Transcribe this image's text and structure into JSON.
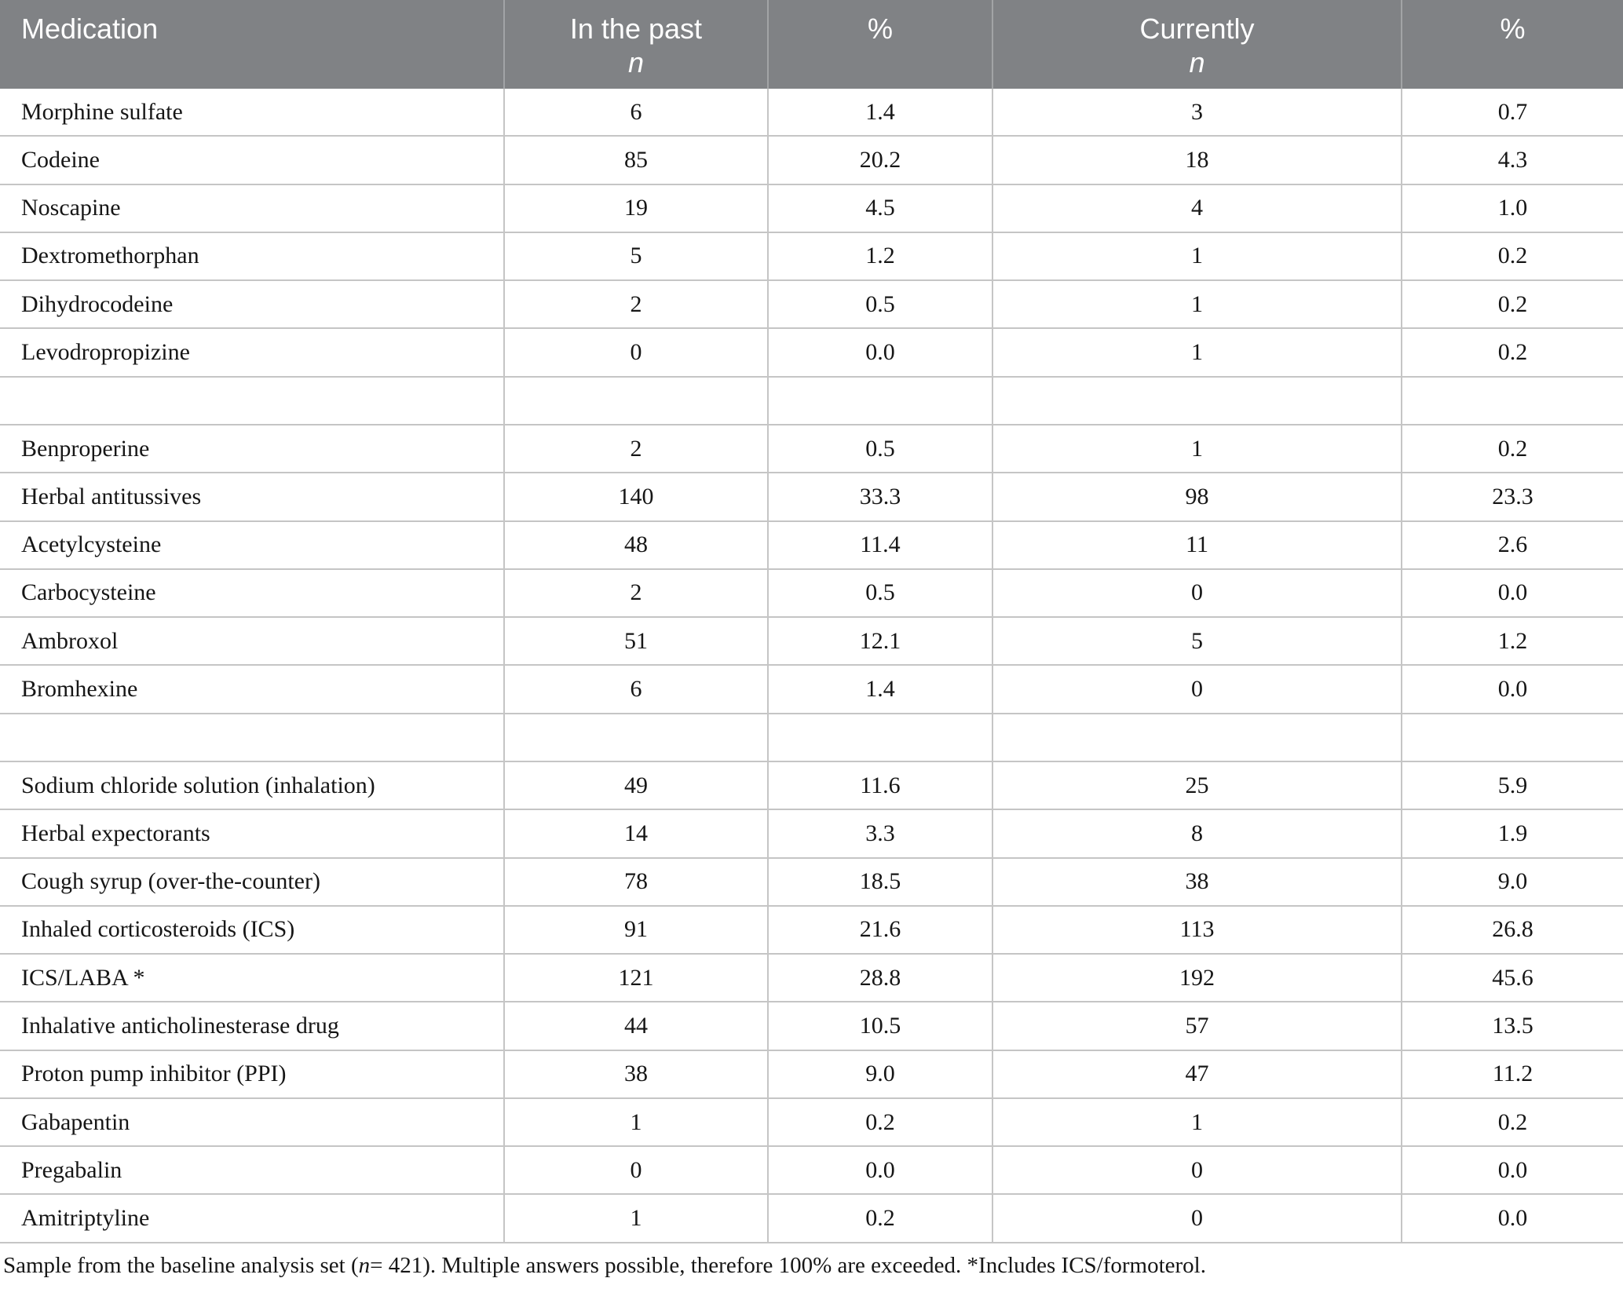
{
  "theme": {
    "header_bg": "#808285",
    "header_text": "#ffffff",
    "header_divider": "#a2a4a6",
    "row_border": "#c5c5c5",
    "text": "#161616",
    "bg": "#ffffff"
  },
  "table": {
    "header": {
      "medication": "Medication",
      "past": "In the past",
      "pct_past": "%",
      "currently": "Currently",
      "pct_current": "%",
      "n_symbol": "n"
    },
    "rows": [
      {
        "name": "Morphine sulfate",
        "past_n": "6",
        "past_pct": "1.4",
        "curr_n": "3",
        "curr_pct": "0.7"
      },
      {
        "name": "Codeine",
        "past_n": "85",
        "past_pct": "20.2",
        "curr_n": "18",
        "curr_pct": "4.3"
      },
      {
        "name": "Noscapine",
        "past_n": "19",
        "past_pct": "4.5",
        "curr_n": "4",
        "curr_pct": "1.0"
      },
      {
        "name": "Dextromethorphan",
        "past_n": "5",
        "past_pct": "1.2",
        "curr_n": "1",
        "curr_pct": "0.2"
      },
      {
        "name": "Dihydrocodeine",
        "past_n": "2",
        "past_pct": "0.5",
        "curr_n": "1",
        "curr_pct": "0.2"
      },
      {
        "name": "Levodropropizine",
        "past_n": "0",
        "past_pct": "0.0",
        "curr_n": "1",
        "curr_pct": "0.2"
      },
      {
        "name": "",
        "past_n": "",
        "past_pct": "",
        "curr_n": "",
        "curr_pct": ""
      },
      {
        "name": "Benproperine",
        "past_n": "2",
        "past_pct": "0.5",
        "curr_n": "1",
        "curr_pct": "0.2"
      },
      {
        "name": "Herbal antitussives",
        "past_n": "140",
        "past_pct": "33.3",
        "curr_n": "98",
        "curr_pct": "23.3"
      },
      {
        "name": "Acetylcysteine",
        "past_n": "48",
        "past_pct": "11.4",
        "curr_n": "11",
        "curr_pct": "2.6"
      },
      {
        "name": "Carbocysteine",
        "past_n": "2",
        "past_pct": "0.5",
        "curr_n": "0",
        "curr_pct": "0.0"
      },
      {
        "name": "Ambroxol",
        "past_n": "51",
        "past_pct": "12.1",
        "curr_n": "5",
        "curr_pct": "1.2"
      },
      {
        "name": "Bromhexine",
        "past_n": "6",
        "past_pct": "1.4",
        "curr_n": "0",
        "curr_pct": "0.0"
      },
      {
        "name": "",
        "past_n": "",
        "past_pct": "",
        "curr_n": "",
        "curr_pct": ""
      },
      {
        "name": "Sodium chloride solution (inhalation)",
        "past_n": "49",
        "past_pct": "11.6",
        "curr_n": "25",
        "curr_pct": "5.9"
      },
      {
        "name": "Herbal expectorants",
        "past_n": "14",
        "past_pct": "3.3",
        "curr_n": "8",
        "curr_pct": "1.9"
      },
      {
        "name": "Cough syrup (over-the-counter)",
        "past_n": "78",
        "past_pct": "18.5",
        "curr_n": "38",
        "curr_pct": "9.0"
      },
      {
        "name": "Inhaled corticosteroids (ICS)",
        "past_n": "91",
        "past_pct": "21.6",
        "curr_n": "113",
        "curr_pct": "26.8"
      },
      {
        "name": "ICS/LABA *",
        "past_n": "121",
        "past_pct": "28.8",
        "curr_n": "192",
        "curr_pct": "45.6"
      },
      {
        "name": "Inhalative anticholinesterase drug",
        "past_n": "44",
        "past_pct": "10.5",
        "curr_n": "57",
        "curr_pct": "13.5"
      },
      {
        "name": "Proton pump inhibitor (PPI)",
        "past_n": "38",
        "past_pct": "9.0",
        "curr_n": "47",
        "curr_pct": "11.2"
      },
      {
        "name": "Gabapentin",
        "past_n": "1",
        "past_pct": "0.2",
        "curr_n": "1",
        "curr_pct": "0.2"
      },
      {
        "name": "Pregabalin",
        "past_n": "0",
        "past_pct": "0.0",
        "curr_n": "0",
        "curr_pct": "0.0"
      },
      {
        "name": "Amitriptyline",
        "past_n": "1",
        "past_pct": "0.2",
        "curr_n": "0",
        "curr_pct": "0.0"
      }
    ]
  },
  "footnote": {
    "part1": "Sample from the baseline analysis set (",
    "italic_n": "n",
    "part2": " = 421). Multiple answers possible, therefore 100% are exceeded. *Includes ICS/formoterol."
  }
}
